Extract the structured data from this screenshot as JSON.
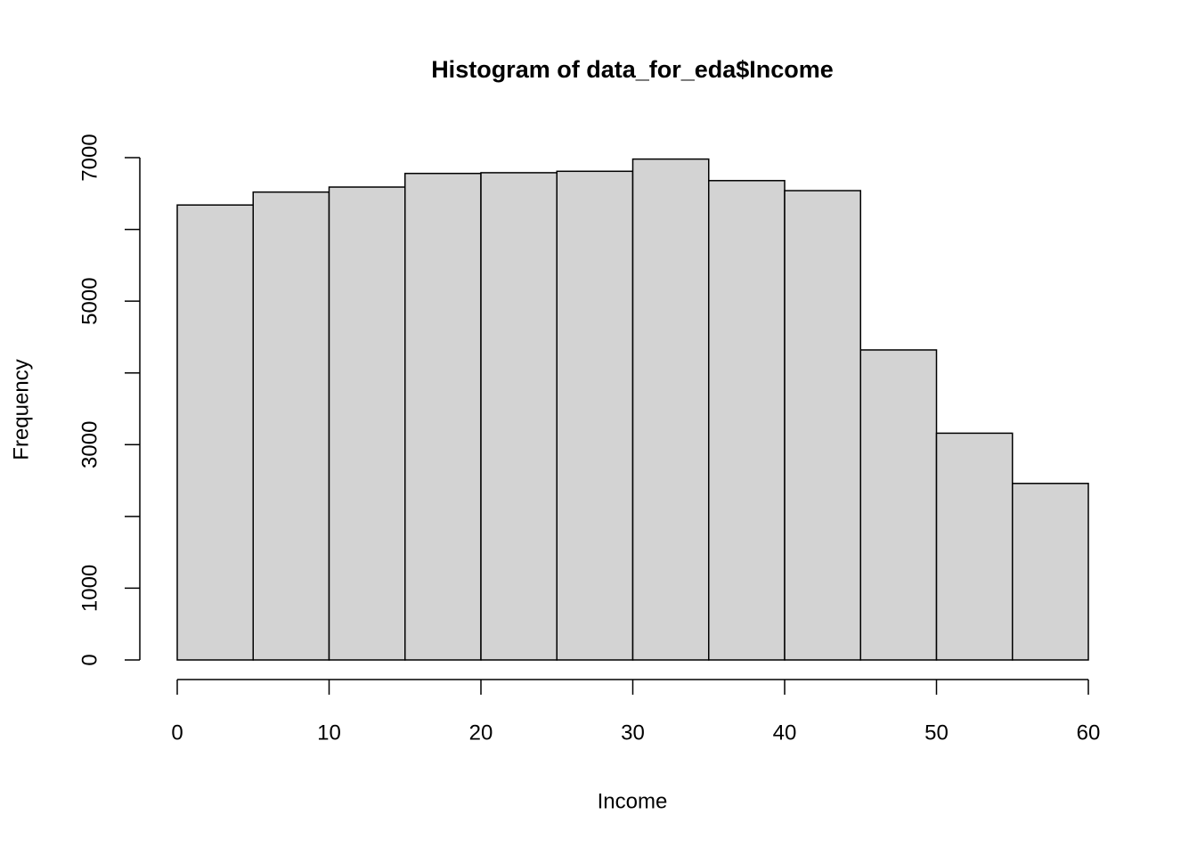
{
  "chart_data": {
    "type": "histogram",
    "title": "Histogram of data_for_eda$Income",
    "x_label": "Income",
    "y_label": "Frequency",
    "bins": [
      0,
      5,
      10,
      15,
      20,
      25,
      30,
      35,
      40,
      45,
      50,
      55,
      60
    ],
    "values": [
      6340,
      6520,
      6590,
      6780,
      6790,
      6810,
      6980,
      6680,
      6540,
      4320,
      3160,
      2460
    ],
    "color": "#d3d3d3",
    "xlim": [
      0,
      60
    ],
    "xticks": [
      0,
      10,
      20,
      30,
      40,
      50,
      60
    ],
    "ylim": [
      0,
      7000
    ],
    "yticks": [
      0,
      1000,
      {
        "value": 2000,
        "label": null
      },
      3000,
      {
        "value": 4000,
        "label": null
      },
      5000,
      {
        "value": 6000,
        "label": null
      },
      7000
    ]
  }
}
